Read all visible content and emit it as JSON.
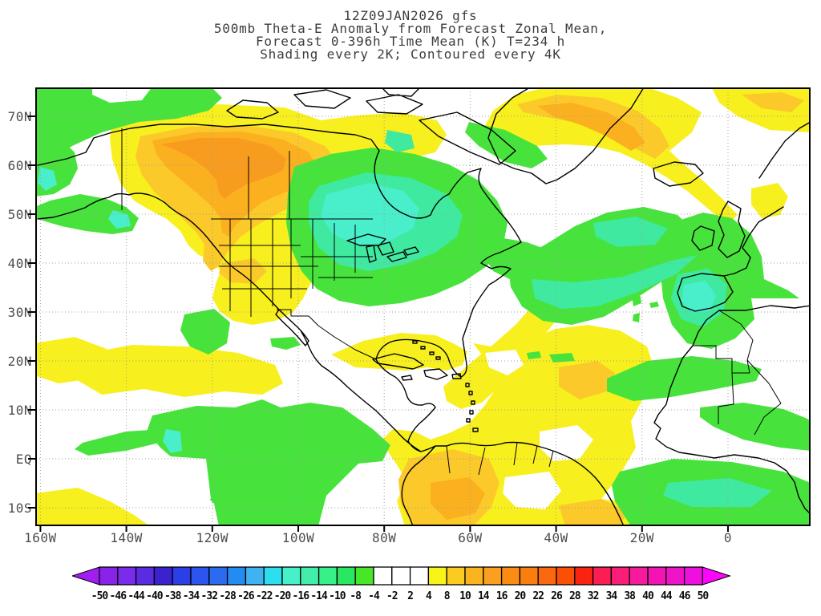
{
  "title": {
    "line1": "12Z09JAN2026 gfs",
    "line2": "500mb Theta-E Anomaly from Forecast Zonal Mean,",
    "line3": "Forecast 0-396h Time Mean (K) T=234 h",
    "line4": "Shading every 2K; Contoured every 4K"
  },
  "axes": {
    "lat_labels": [
      "70N",
      "60N",
      "50N",
      "40N",
      "30N",
      "20N",
      "10N",
      "EQ",
      "10S"
    ],
    "lon_labels": [
      "160W",
      "140W",
      "120W",
      "100W",
      "80W",
      "60W",
      "40W",
      "20W",
      "0"
    ]
  },
  "colorbar": {
    "labels": [
      "-50",
      "-46",
      "-44",
      "-40",
      "-38",
      "-34",
      "-32",
      "-28",
      "-26",
      "-22",
      "-20",
      "-16",
      "-14",
      "-10",
      "-8",
      "-4",
      "-2",
      "2",
      "4",
      "8",
      "10",
      "14",
      "16",
      "20",
      "22",
      "26",
      "28",
      "32",
      "34",
      "38",
      "40",
      "44",
      "46",
      "50"
    ],
    "cell_colors": [
      "#8a22ea",
      "#7a2beb",
      "#5a2be0",
      "#3b22cf",
      "#2b3ee8",
      "#2b55ee",
      "#2b6bf2",
      "#238bf2",
      "#41b2f0",
      "#2bdff0",
      "#46f0c8",
      "#41eeaa",
      "#37f087",
      "#2be65f",
      "#46e628",
      "#ffffff",
      "#ffffff",
      "#ffffff",
      "#f8f319",
      "#fbcb22",
      "#fbb41e",
      "#fba01e",
      "#fa8c14",
      "#fa7d0f",
      "#fa690f",
      "#fa4f05",
      "#fa230f",
      "#fa1e55",
      "#fa1e78",
      "#f71b9b",
      "#f214b4",
      "#f014c8",
      "#ee10dc"
    ],
    "left_arrow_color": "#a21ef0",
    "right_arrow_color": "#fb05fb"
  },
  "palette": {
    "white": "#ffffff",
    "yellow": "#f8ef1e",
    "orange1": "#fbc92a",
    "orange2": "#fbb020",
    "orange3": "#f89c20",
    "green": "#47e33c",
    "mint": "#3fe9a0",
    "turquoise": "#49eecb",
    "coast": "#000000",
    "grid": "#9e9e9e",
    "frame": "#000000"
  },
  "chart_data": {
    "type": "heatmap",
    "title": "500mb Theta-E Anomaly from Forecast Zonal Mean, Forecast 0-396h Time Mean (K) T=234 h",
    "model": "gfs",
    "init_time": "12Z09JAN2026",
    "valid": "T=234 h",
    "units": "K",
    "shading_interval_K": 2,
    "contour_interval_K": 4,
    "lat_axis": [
      "10S",
      "EQ",
      "10N",
      "20N",
      "30N",
      "40N",
      "50N",
      "60N",
      "70N"
    ],
    "lon_axis": [
      "160W",
      "140W",
      "120W",
      "100W",
      "80W",
      "60W",
      "40W",
      "20W",
      "0"
    ],
    "shade_levels": [
      -50,
      -46,
      -44,
      -40,
      -38,
      -34,
      -32,
      -28,
      -26,
      -22,
      -20,
      -16,
      -14,
      -10,
      -8,
      -4,
      -2,
      2,
      4,
      8,
      10,
      14,
      16,
      20,
      22,
      26,
      28,
      32,
      34,
      38,
      40,
      44,
      46,
      50
    ],
    "features": [
      {
        "region": "Northwest Canada / Yukon-NWT",
        "anomaly_K": "+8 to +16",
        "shade": "yellow-orange core"
      },
      {
        "region": "US Rockies / Four Corners",
        "anomaly_K": "+4 to +10",
        "shade": "yellow with orange spot"
      },
      {
        "region": "Hudson Bay / Great Lakes / Quebec",
        "anomaly_K": "-8 to -14",
        "shade": "green with cyan core"
      },
      {
        "region": "Central North Atlantic 50W-20W 45-55N",
        "anomaly_K": "-6 to -12",
        "shade": "green with mint cores"
      },
      {
        "region": "Greenland / Iceland / Denmark Strait",
        "anomaly_K": "+6 to +12",
        "shade": "yellow with orange core"
      },
      {
        "region": "Arctic far-north strip 160W-120W",
        "anomaly_K": "-4 to -8",
        "shade": "green"
      },
      {
        "region": "Subtropical Atlantic diagonal band 60W-25W",
        "anomaly_K": "+4 to +10",
        "shade": "yellow, orange streak"
      },
      {
        "region": "Caribbean / northern South America",
        "anomaly_K": "+4 to +12",
        "shade": "yellow with orange core over NW Brazil"
      },
      {
        "region": "Iberia / Morocco",
        "anomaly_K": "-6 to -12",
        "shade": "green with mint-cyan core"
      },
      {
        "region": "Sahel band ~17N",
        "anomaly_K": "-4 to -8",
        "shade": "green"
      },
      {
        "region": "Gulf of Guinea / South Atlantic",
        "anomaly_K": "-4 to -10",
        "shade": "green with mint core"
      },
      {
        "region": "Eastern tropical Pacific",
        "anomaly_K": "-4 to -8",
        "shade": "green, small cyan spot"
      },
      {
        "region": "Tropical Pacific band ~20-25N and Hawaii",
        "anomaly_K": "+4 to +8",
        "shade": "yellow"
      },
      {
        "region": "Gulf of Alaska 50N",
        "anomaly_K": "-4 to -10",
        "shade": "green arc with cyan core"
      }
    ]
  }
}
